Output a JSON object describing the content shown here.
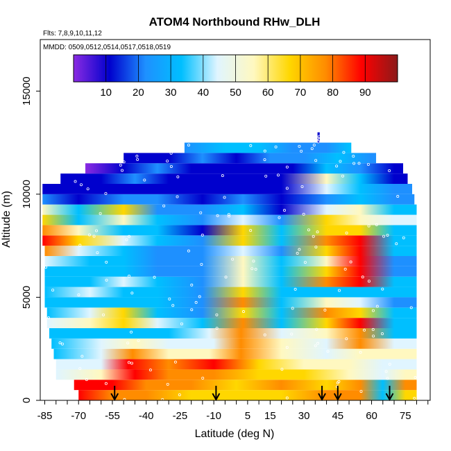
{
  "chart_data": {
    "type": "heatmap",
    "title": "ATOM4 Northbound RHw_DLH",
    "flights_note": "Flts: 7,8,9,10,11,12",
    "dates_note": "MMDD: 0509,0512,0514,0517,0518,0519",
    "xlabel": "Latitude (deg N)",
    "ylabel": "Altitude (m)",
    "xlim": [
      -87,
      86
    ],
    "ylim": [
      0,
      17500
    ],
    "x_ticks": [
      -85,
      -70,
      -55,
      -40,
      -25,
      -10,
      5,
      15,
      30,
      45,
      60,
      75
    ],
    "x_tick_labels": [
      "-85",
      "-70",
      "-55",
      "-40",
      "-25",
      "-10",
      "5",
      "15",
      "30",
      "45",
      "60",
      "75"
    ],
    "y_ticks": [
      0,
      5000,
      10000,
      15000
    ],
    "y_tick_labels": [
      "0",
      "5000",
      "10000",
      "15000"
    ],
    "colorbar": {
      "min": 0,
      "max": 100,
      "ticks": [
        10,
        20,
        30,
        40,
        50,
        60,
        70,
        80,
        90
      ],
      "tick_labels": [
        "10",
        "20",
        "30",
        "40",
        "50",
        "60",
        "70",
        "80",
        "90"
      ],
      "colors": [
        "#8a2be2",
        "#0000cd",
        "#1e90ff",
        "#00bfff",
        "#e0f5ff",
        "#fff8c0",
        "#ffd700",
        "#ff8c00",
        "#ff0000",
        "#8b1a1a"
      ]
    },
    "profile_latitudes": [
      -54,
      -9,
      38,
      45,
      68
    ],
    "bands": [
      {
        "bottom": 0,
        "top": 500,
        "lat_start": -70,
        "lat_end": 80,
        "values": [
          [
            -70,
            85
          ],
          [
            -55,
            80
          ],
          [
            -40,
            75
          ],
          [
            -20,
            70
          ],
          [
            0,
            65
          ],
          [
            20,
            70
          ],
          [
            40,
            75
          ],
          [
            55,
            80
          ],
          [
            65,
            30
          ],
          [
            75,
            70
          ]
        ]
      },
      {
        "bottom": 500,
        "top": 1000,
        "lat_start": -72,
        "lat_end": 80,
        "values": [
          [
            -72,
            85
          ],
          [
            -55,
            90
          ],
          [
            -40,
            82
          ],
          [
            -20,
            78
          ],
          [
            0,
            72
          ],
          [
            20,
            75
          ],
          [
            40,
            70
          ],
          [
            55,
            78
          ],
          [
            65,
            35
          ],
          [
            75,
            80
          ]
        ]
      },
      {
        "bottom": 1000,
        "top": 1500,
        "lat_start": -80,
        "lat_end": 80,
        "values": [
          [
            -80,
            45
          ],
          [
            -60,
            55
          ],
          [
            -45,
            85
          ],
          [
            -30,
            82
          ],
          [
            -10,
            78
          ],
          [
            10,
            70
          ],
          [
            30,
            62
          ],
          [
            50,
            55
          ],
          [
            65,
            40
          ],
          [
            75,
            55
          ]
        ]
      },
      {
        "bottom": 1500,
        "top": 2000,
        "lat_start": -80,
        "lat_end": 80,
        "values": [
          [
            -80,
            40
          ],
          [
            -60,
            45
          ],
          [
            -48,
            85
          ],
          [
            -30,
            80
          ],
          [
            -10,
            85
          ],
          [
            10,
            72
          ],
          [
            30,
            55
          ],
          [
            50,
            50
          ],
          [
            65,
            40
          ],
          [
            75,
            45
          ]
        ]
      },
      {
        "bottom": 2000,
        "top": 2500,
        "lat_start": -81,
        "lat_end": 80,
        "values": [
          [
            -81,
            38
          ],
          [
            -60,
            42
          ],
          [
            -46,
            75
          ],
          [
            -30,
            60
          ],
          [
            -12,
            50
          ],
          [
            2,
            75
          ],
          [
            20,
            55
          ],
          [
            40,
            45
          ],
          [
            55,
            55
          ],
          [
            70,
            60
          ]
        ]
      },
      {
        "bottom": 2500,
        "top": 3000,
        "lat_start": -82,
        "lat_end": 80,
        "values": [
          [
            -82,
            35
          ],
          [
            -60,
            40
          ],
          [
            -45,
            55
          ],
          [
            -30,
            45
          ],
          [
            -10,
            40
          ],
          [
            2,
            78
          ],
          [
            20,
            50
          ],
          [
            40,
            45
          ],
          [
            55,
            78
          ],
          [
            70,
            40
          ]
        ]
      },
      {
        "bottom": 3000,
        "top": 3500,
        "lat_start": -83,
        "lat_end": 80,
        "values": [
          [
            -83,
            30
          ],
          [
            -60,
            38
          ],
          [
            -45,
            30
          ],
          [
            -30,
            35
          ],
          [
            -12,
            45
          ],
          [
            2,
            80
          ],
          [
            20,
            40
          ],
          [
            40,
            50
          ],
          [
            55,
            82
          ],
          [
            70,
            35
          ]
        ]
      },
      {
        "bottom": 3500,
        "top": 4000,
        "lat_start": -84,
        "lat_end": 80,
        "values": [
          [
            -84,
            40
          ],
          [
            -65,
            55
          ],
          [
            -50,
            65
          ],
          [
            -35,
            40
          ],
          [
            -15,
            30
          ],
          [
            3,
            75
          ],
          [
            20,
            35
          ],
          [
            40,
            70
          ],
          [
            55,
            85
          ],
          [
            70,
            30
          ]
        ]
      },
      {
        "bottom": 4000,
        "top": 4500,
        "lat_start": -84,
        "lat_end": 80,
        "values": [
          [
            -84,
            35
          ],
          [
            -65,
            40
          ],
          [
            -50,
            72
          ],
          [
            -35,
            35
          ],
          [
            -15,
            25
          ],
          [
            3,
            70
          ],
          [
            20,
            30
          ],
          [
            40,
            75
          ],
          [
            55,
            70
          ],
          [
            70,
            30
          ]
        ]
      },
      {
        "bottom": 4500,
        "top": 5000,
        "lat_start": -85,
        "lat_end": 80,
        "values": [
          [
            -85,
            30
          ],
          [
            -65,
            35
          ],
          [
            -50,
            30
          ],
          [
            -35,
            30
          ],
          [
            -15,
            20
          ],
          [
            3,
            78
          ],
          [
            20,
            28
          ],
          [
            40,
            60
          ],
          [
            55,
            40
          ],
          [
            70,
            25
          ]
        ]
      },
      {
        "bottom": 5000,
        "top": 5500,
        "lat_start": -85,
        "lat_end": 80,
        "values": [
          [
            -85,
            35
          ],
          [
            -65,
            40
          ],
          [
            -50,
            35
          ],
          [
            -35,
            30
          ],
          [
            -15,
            25
          ],
          [
            3,
            65
          ],
          [
            20,
            30
          ],
          [
            40,
            35
          ],
          [
            55,
            30
          ],
          [
            70,
            30
          ]
        ]
      },
      {
        "bottom": 5500,
        "top": 6000,
        "lat_start": -85,
        "lat_end": 80,
        "values": [
          [
            -85,
            30
          ],
          [
            -65,
            35
          ],
          [
            -50,
            40
          ],
          [
            -35,
            30
          ],
          [
            -15,
            25
          ],
          [
            3,
            60
          ],
          [
            20,
            30
          ],
          [
            40,
            78
          ],
          [
            55,
            85
          ],
          [
            70,
            30
          ]
        ]
      },
      {
        "bottom": 6000,
        "top": 6500,
        "lat_start": -85,
        "lat_end": 80,
        "values": [
          [
            -85,
            28
          ],
          [
            -65,
            30
          ],
          [
            -50,
            32
          ],
          [
            -35,
            25
          ],
          [
            -15,
            20
          ],
          [
            3,
            55
          ],
          [
            20,
            28
          ],
          [
            40,
            70
          ],
          [
            55,
            88
          ],
          [
            70,
            25
          ]
        ]
      },
      {
        "bottom": 6500,
        "top": 7000,
        "lat_start": -85,
        "lat_end": 80,
        "values": [
          [
            -85,
            40
          ],
          [
            -65,
            30
          ],
          [
            -50,
            28
          ],
          [
            -35,
            22
          ],
          [
            -15,
            25
          ],
          [
            3,
            50
          ],
          [
            20,
            30
          ],
          [
            40,
            55
          ],
          [
            55,
            85
          ],
          [
            70,
            25
          ]
        ]
      },
      {
        "bottom": 7000,
        "top": 7500,
        "lat_start": -85,
        "lat_end": 80,
        "values": [
          [
            -85,
            78
          ],
          [
            -70,
            40
          ],
          [
            -50,
            35
          ],
          [
            -35,
            25
          ],
          [
            -15,
            20
          ],
          [
            3,
            45
          ],
          [
            20,
            25
          ],
          [
            40,
            70
          ],
          [
            55,
            90
          ],
          [
            70,
            28
          ]
        ]
      },
      {
        "bottom": 7500,
        "top": 8000,
        "lat_start": -86,
        "lat_end": 80,
        "values": [
          [
            -86,
            85
          ],
          [
            -70,
            70
          ],
          [
            -50,
            40
          ],
          [
            -35,
            30
          ],
          [
            -15,
            20
          ],
          [
            3,
            72
          ],
          [
            20,
            28
          ],
          [
            40,
            80
          ],
          [
            55,
            88
          ],
          [
            70,
            30
          ]
        ]
      },
      {
        "bottom": 8000,
        "top": 8500,
        "lat_start": -86,
        "lat_end": 80,
        "values": [
          [
            -86,
            80
          ],
          [
            -70,
            60
          ],
          [
            -50,
            35
          ],
          [
            -35,
            30
          ],
          [
            -15,
            15
          ],
          [
            3,
            65
          ],
          [
            20,
            30
          ],
          [
            40,
            68
          ],
          [
            55,
            70
          ],
          [
            70,
            35
          ]
        ]
      },
      {
        "bottom": 8500,
        "top": 9000,
        "lat_start": -86,
        "lat_end": 80,
        "values": [
          [
            -86,
            72
          ],
          [
            -70,
            35
          ],
          [
            -50,
            60
          ],
          [
            -35,
            35
          ],
          [
            -15,
            20
          ],
          [
            3,
            45
          ],
          [
            20,
            20
          ],
          [
            40,
            65
          ],
          [
            55,
            60
          ],
          [
            70,
            40
          ]
        ]
      },
      {
        "bottom": 9000,
        "top": 9500,
        "lat_start": -86,
        "lat_end": 80,
        "values": [
          [
            -86,
            55
          ],
          [
            -70,
            30
          ],
          [
            -50,
            70
          ],
          [
            -35,
            25
          ],
          [
            -15,
            20
          ],
          [
            3,
            35
          ],
          [
            20,
            15
          ],
          [
            40,
            45
          ],
          [
            55,
            55
          ],
          [
            70,
            35
          ]
        ]
      },
      {
        "bottom": 9500,
        "top": 10000,
        "lat_start": -86,
        "lat_end": 79,
        "values": [
          [
            -86,
            20
          ],
          [
            -70,
            15
          ],
          [
            -50,
            25
          ],
          [
            -35,
            18
          ],
          [
            -15,
            15
          ],
          [
            3,
            20
          ],
          [
            20,
            12
          ],
          [
            40,
            25
          ],
          [
            55,
            30
          ],
          [
            70,
            25
          ]
        ]
      },
      {
        "bottom": 10000,
        "top": 10500,
        "lat_start": -86,
        "lat_end": 78,
        "values": [
          [
            -86,
            8
          ],
          [
            -70,
            12
          ],
          [
            -50,
            15
          ],
          [
            -35,
            12
          ],
          [
            -15,
            10
          ],
          [
            3,
            15
          ],
          [
            20,
            10
          ],
          [
            40,
            40
          ],
          [
            55,
            35
          ],
          [
            70,
            20
          ]
        ]
      },
      {
        "bottom": 10500,
        "top": 11000,
        "lat_start": -78,
        "lat_end": 76,
        "values": [
          [
            -78,
            6
          ],
          [
            -60,
            15
          ],
          [
            -45,
            20
          ],
          [
            -30,
            15
          ],
          [
            -15,
            8
          ],
          [
            3,
            12
          ],
          [
            20,
            10
          ],
          [
            40,
            50
          ],
          [
            55,
            30
          ],
          [
            70,
            8
          ]
        ]
      },
      {
        "bottom": 11000,
        "top": 11500,
        "lat_start": -67,
        "lat_end": 74,
        "values": [
          [
            -67,
            5
          ],
          [
            -50,
            12
          ],
          [
            -35,
            18
          ],
          [
            -20,
            15
          ],
          [
            -5,
            10
          ],
          [
            10,
            12
          ],
          [
            25,
            15
          ],
          [
            40,
            35
          ],
          [
            55,
            20
          ],
          [
            70,
            6
          ]
        ]
      },
      {
        "bottom": 11500,
        "top": 12000,
        "lat_start": -50,
        "lat_end": 62,
        "values": [
          [
            -50,
            10
          ],
          [
            -30,
            15
          ],
          [
            -15,
            20
          ],
          [
            0,
            12
          ],
          [
            15,
            18
          ],
          [
            30,
            25
          ],
          [
            45,
            30
          ],
          [
            60,
            22
          ]
        ]
      },
      {
        "bottom": 12000,
        "top": 12500,
        "lat_start": -23,
        "lat_end": 51,
        "values": [
          [
            -23,
            25
          ],
          [
            -5,
            30
          ],
          [
            10,
            28
          ],
          [
            25,
            20
          ],
          [
            40,
            25
          ],
          [
            50,
            30
          ]
        ]
      },
      {
        "bottom": 12500,
        "top": 13000,
        "lat_start": 36,
        "lat_end": 37,
        "values": [
          [
            36,
            15
          ],
          [
            37,
            15
          ]
        ]
      }
    ]
  }
}
